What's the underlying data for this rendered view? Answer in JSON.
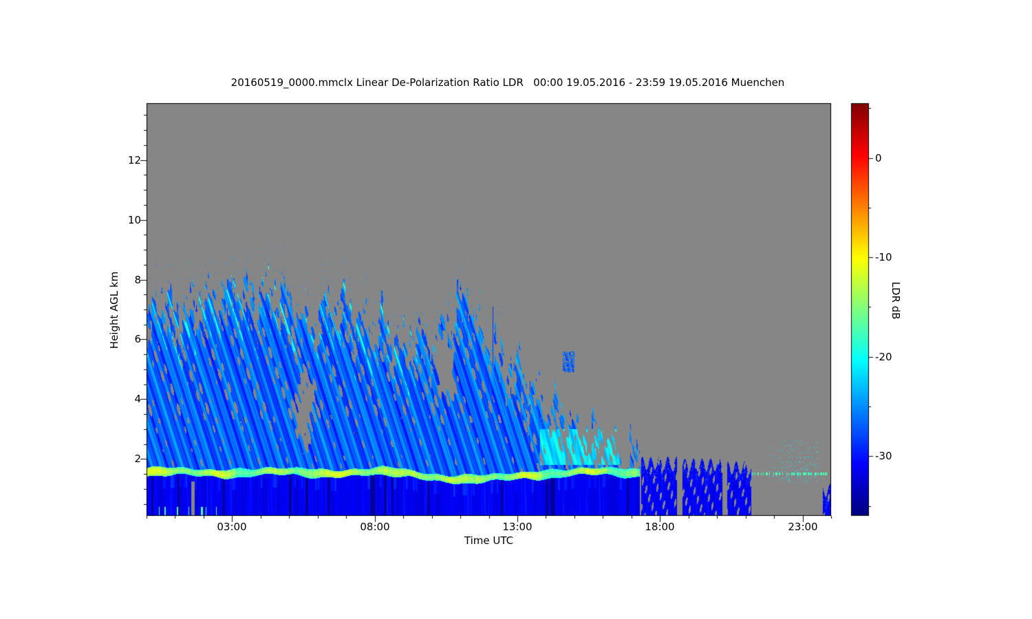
{
  "chart_data": {
    "type": "heatmap",
    "title": "20160519_0000.mmclx Linear De-Polarization Ratio LDR   00:00 19.05.2016 - 23:59 19.05.2016 Muenchen",
    "xlabel": "Time UTC",
    "ylabel": "Height AGL km",
    "x_axis": {
      "range_hours": [
        0,
        24
      ],
      "major_tick_hours": [
        3,
        8,
        13,
        18,
        23
      ],
      "major_tick_labels": [
        "03:00",
        "08:00",
        "13:00",
        "18:00",
        "23:00"
      ],
      "minor_tick_step_hours": 1
    },
    "y_axis": {
      "range_km": [
        0.1,
        13.9
      ],
      "major_ticks_km": [
        2,
        4,
        6,
        8,
        10,
        12
      ],
      "minor_tick_step_km": 0.5
    },
    "colorbar": {
      "label": "LDR dB",
      "range_db": [
        5.5,
        -36
      ],
      "tick_values_db": [
        0,
        -10,
        -20,
        -30
      ],
      "tick_labels": [
        "0",
        "-10",
        "-20",
        "-30"
      ],
      "colormap": "jet"
    },
    "colors": {
      "no_data": "#868686",
      "page_background": "#ffffff",
      "axis": "#000000",
      "text": "#000000"
    },
    "features": {
      "description": "Cloud-radar LDR time/height field over Muenchen; gray = no signal",
      "ice_cloud": {
        "time_range_hours": [
          0,
          17.4
        ],
        "top_profile_time_km": [
          [
            0,
            6.6
          ],
          [
            0.5,
            7.7
          ],
          [
            1,
            7.0
          ],
          [
            1.5,
            7.3
          ],
          [
            2,
            7.6
          ],
          [
            3,
            7.8
          ],
          [
            4,
            7.6
          ],
          [
            4.5,
            7.9
          ],
          [
            5,
            7.3
          ],
          [
            5.5,
            7.0
          ],
          [
            6,
            6.9
          ],
          [
            6.5,
            7.3
          ],
          [
            7,
            7.3
          ],
          [
            7.5,
            6.7
          ],
          [
            8,
            6.6
          ],
          [
            8.5,
            6.2
          ],
          [
            9,
            6.0
          ],
          [
            9.5,
            6.3
          ],
          [
            10,
            6.1
          ],
          [
            10.7,
            6.6
          ],
          [
            11,
            7.6
          ],
          [
            11.3,
            7.2
          ],
          [
            11.7,
            6.4
          ],
          [
            12,
            6.1
          ],
          [
            12.5,
            5.6
          ],
          [
            13,
            4.9
          ],
          [
            13.5,
            4.5
          ],
          [
            14,
            4.1
          ],
          [
            14.5,
            3.7
          ],
          [
            15,
            3.3
          ],
          [
            15.5,
            3.0
          ],
          [
            16,
            2.9
          ],
          [
            16.5,
            2.7
          ],
          [
            17,
            2.4
          ],
          [
            17.4,
            2.0
          ]
        ],
        "ldr_db_range": [
          -31,
          -18
        ],
        "typical_ldr_db": -26,
        "fall_streak_slope_km_per_hour": -3
      },
      "melting_layer": {
        "time_range_hours": [
          0,
          17.3
        ],
        "height_km": 1.55,
        "dip": {
          "time_hours": 11.5,
          "min_height_km": 1.3
        },
        "thickness_km": 0.22,
        "ldr_db": -14,
        "brightest_ldr_db": -12
      },
      "rain": {
        "time_range_hours": [
          0,
          17.3
        ],
        "top_km": 1.45,
        "ldr_db": -31,
        "darkest_ldr_db": -34
      },
      "late_precip_cells": [
        {
          "time_range_hours": [
            17.35,
            18.6
          ],
          "top_km": 1.85,
          "ldr_db": -31
        },
        {
          "time_range_hours": [
            18.8,
            20.2
          ],
          "top_km": 1.8,
          "ldr_db": -31
        },
        {
          "time_range_hours": [
            20.35,
            21.2
          ],
          "top_km": 1.7,
          "ldr_db": -31
        },
        {
          "time_range_hours": [
            23.7,
            24.05
          ],
          "top_km": 0.95,
          "ldr_db": -31
        }
      ],
      "cyan_band": {
        "time_range_hours": [
          13.8,
          16.6
        ],
        "height_range_km": [
          1.8,
          3.0
        ],
        "ldr_db": -21
      },
      "isolated_cloud": {
        "time_range_hours": [
          14.6,
          15.0
        ],
        "height_range_km": [
          4.9,
          5.6
        ],
        "ldr_db": -27
      },
      "late_speckles": {
        "time_range_hours": [
          21.8,
          23.6
        ],
        "height_range_km": [
          1.2,
          2.6
        ],
        "ldr_db": -20
      },
      "thin_layer_late": {
        "time_range_hours": [
          21.2,
          23.85
        ],
        "height_km": 1.5,
        "ldr_db": -17
      },
      "vertical_artifacts": [
        [
          12.15,
          7.1
        ],
        [
          13.45,
          4.6
        ]
      ],
      "gray_notches": [
        {
          "time_hours": 5.55,
          "height_km": 3.6
        },
        {
          "time_hours": 10.45,
          "height_km": 5.0
        }
      ]
    }
  }
}
